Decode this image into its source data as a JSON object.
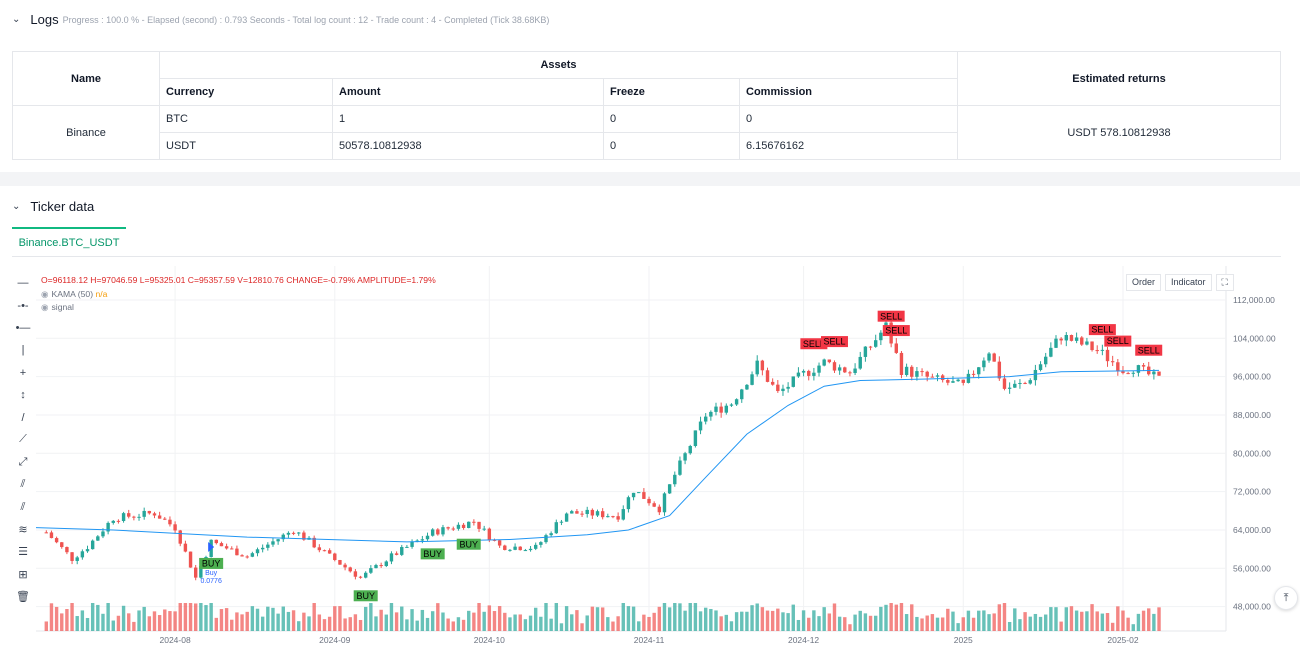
{
  "logs": {
    "title": "Logs",
    "info": "Progress : 100.0 % - Elapsed (second) : 0.793  Seconds - Total log count : 12 - Trade count : 4 - Completed (Tick 38.68KB)",
    "table": {
      "name_header": "Name",
      "assets_header": "Assets",
      "returns_header": "Estimated returns",
      "columns": [
        "Currency",
        "Amount",
        "Freeze",
        "Commission"
      ],
      "exchange": "Binance",
      "rows": [
        [
          "BTC",
          "1",
          "0",
          "0"
        ],
        [
          "USDT",
          "50578.10812938",
          "0",
          "6.15676162"
        ]
      ],
      "returns": "USDT 578.10812938"
    }
  },
  "ticker": {
    "title": "Ticker data",
    "tab": "Binance.BTC_USDT",
    "buttons": {
      "order": "Order",
      "indicator": "Indicator"
    },
    "legend": {
      "ohlc": "O=96118.12 H=97046.59 L=95325.01 C=95357.59 V=12810.76 CHANGE=-0.79% AMPLITUDE=1.79%",
      "kama_label": "KAMA (50)",
      "kama_value": "n/a",
      "signal_label": "signal"
    },
    "tools": [
      "crosshair-icon",
      "horizontal-line-icon",
      "horizontal-ray-icon",
      "vertical-line-icon",
      "cross-line-icon",
      "price-line-icon",
      "trend-line-icon",
      "ray-line-icon",
      "extended-line-icon",
      "price-channel-icon",
      "parallel-channel-icon",
      "fib-retracement-icon",
      "fib-extension-icon",
      "measure-icon",
      "delete-icon"
    ],
    "tool_glyphs": [
      "—",
      "-•-",
      "•—",
      "|",
      "+",
      "↕",
      "/",
      "⟋",
      "⤢",
      "⫽",
      "⫽",
      "≋",
      "☰",
      "⊞",
      "🗑"
    ],
    "colors": {
      "up": "#26a69a",
      "down": "#ef5350",
      "kama": "#2196f3",
      "buy_label": "#4caf50",
      "sell_label": "#f23645"
    }
  },
  "chart_data": {
    "type": "candlestick",
    "y_ticks": [
      "112,000.00",
      "104,000.00",
      "96,000.00",
      "88,000.00",
      "80,000.00",
      "72,000.00",
      "64,000.00",
      "56,000.00",
      "48,000.00"
    ],
    "x_ticks": [
      "2024-08",
      "2024-09",
      "2024-10",
      "2024-11",
      "2024-12",
      "2025",
      "2025-02"
    ],
    "ylim": [
      45000,
      117000
    ],
    "anchors": [
      [
        "2024-07-07",
        63500
      ],
      [
        "2024-07-12",
        58000
      ],
      [
        "2024-07-15",
        60500
      ],
      [
        "2024-07-20",
        66500
      ],
      [
        "2024-07-28",
        67500
      ],
      [
        "2024-08-01",
        64500
      ],
      [
        "2024-08-05",
        54000
      ],
      [
        "2024-08-08",
        61500
      ],
      [
        "2024-08-15",
        58500
      ],
      [
        "2024-08-24",
        64000
      ],
      [
        "2024-08-31",
        58500
      ],
      [
        "2024-09-06",
        54000
      ],
      [
        "2024-09-12",
        58500
      ],
      [
        "2024-09-20",
        63500
      ],
      [
        "2024-09-28",
        65800
      ],
      [
        "2024-10-03",
        60600
      ],
      [
        "2024-10-10",
        60300
      ],
      [
        "2024-10-16",
        67600
      ],
      [
        "2024-10-22",
        67300
      ],
      [
        "2024-10-26",
        67000
      ],
      [
        "2024-10-29",
        72400
      ],
      [
        "2024-11-03",
        68500
      ],
      [
        "2024-11-06",
        75500
      ],
      [
        "2024-11-12",
        88000
      ],
      [
        "2024-11-17",
        90500
      ],
      [
        "2024-11-22",
        98500
      ],
      [
        "2024-11-26",
        92500
      ],
      [
        "2024-12-01",
        96500
      ],
      [
        "2024-12-05",
        99000
      ],
      [
        "2024-12-10",
        97000
      ],
      [
        "2024-12-17",
        106500
      ],
      [
        "2024-12-20",
        97500
      ],
      [
        "2024-12-26",
        95500
      ],
      [
        "2025-01-01",
        94000
      ],
      [
        "2025-01-06",
        101500
      ],
      [
        "2025-01-09",
        93500
      ],
      [
        "2025-01-13",
        94500
      ],
      [
        "2025-01-20",
        104500
      ],
      [
        "2025-01-27",
        101500
      ],
      [
        "2025-02-01",
        97500
      ],
      [
        "2025-02-03",
        98000
      ],
      [
        "2025-02-06",
        96400
      ],
      [
        "2025-02-08",
        95357
      ]
    ],
    "kama": [
      [
        "2024-07-05",
        64500
      ],
      [
        "2024-07-20",
        64000
      ],
      [
        "2024-08-15",
        62500
      ],
      [
        "2024-09-15",
        61500
      ],
      [
        "2024-10-05",
        62000
      ],
      [
        "2024-10-20",
        63000
      ],
      [
        "2024-10-28",
        64000
      ],
      [
        "2024-11-05",
        67000
      ],
      [
        "2024-11-12",
        75000
      ],
      [
        "2024-11-20",
        84000
      ],
      [
        "2024-11-28",
        90000
      ],
      [
        "2024-12-05",
        94000
      ],
      [
        "2024-12-12",
        95200
      ],
      [
        "2024-12-25",
        95500
      ],
      [
        "2025-01-10",
        96000
      ],
      [
        "2025-01-20",
        97000
      ],
      [
        "2025-02-08",
        97300
      ]
    ],
    "buy_signals": [
      "2024-08-08",
      "2024-09-07",
      "2024-09-20",
      "2024-09-27"
    ],
    "sell_signals": [
      "2024-12-03",
      "2024-12-07",
      "2024-12-18",
      "2024-12-19",
      "2025-01-28",
      "2025-01-31",
      "2025-02-06"
    ],
    "signal_text": {
      "buy": "BUY",
      "sell": "SELL"
    },
    "trade_note": {
      "label": "Buy",
      "value": "0.0776"
    }
  }
}
